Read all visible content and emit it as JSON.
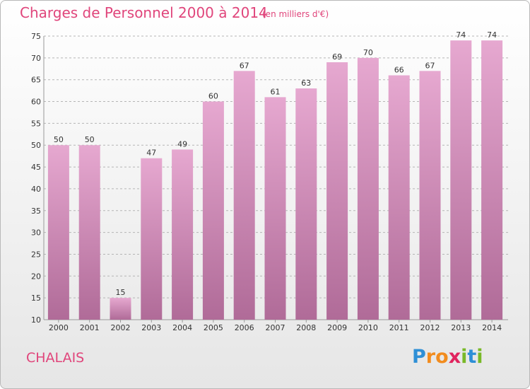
{
  "header": {
    "title": "Charges de Personnel 2000 à 2014",
    "unit": "(en milliers d'€)"
  },
  "commune": "CHALAIS",
  "logo": {
    "text": "Proxiti",
    "letters": [
      {
        "ch": "P",
        "color": "#2e8fd6"
      },
      {
        "ch": "r",
        "color": "#f28c1e"
      },
      {
        "ch": "o",
        "color": "#f28c1e"
      },
      {
        "ch": "x",
        "color": "#e0245e"
      },
      {
        "ch": "i",
        "color": "#79b928"
      },
      {
        "ch": "t",
        "color": "#2e8fd6"
      },
      {
        "ch": "i",
        "color": "#79b928"
      }
    ]
  },
  "colors": {
    "bar_top": "#e6a8d0",
    "bar_bottom": "#b06b98",
    "grid": "#b5b5b5",
    "text": "#333333"
  },
  "chart_data": {
    "type": "bar",
    "categories": [
      "2000",
      "2001",
      "2002",
      "2003",
      "2004",
      "2005",
      "2006",
      "2007",
      "2008",
      "2009",
      "2010",
      "2011",
      "2012",
      "2013",
      "2014"
    ],
    "values": [
      50,
      50,
      15,
      47,
      49,
      60,
      67,
      61,
      63,
      69,
      70,
      66,
      67,
      74,
      74
    ],
    "title": "Charges de Personnel 2000 à 2014",
    "ylabel": "",
    "xlabel": "",
    "ylim": [
      10,
      75
    ],
    "yticks": [
      10,
      15,
      20,
      25,
      30,
      35,
      40,
      45,
      50,
      55,
      60,
      65,
      70,
      75
    ],
    "grid": "horizontal-dashed"
  }
}
